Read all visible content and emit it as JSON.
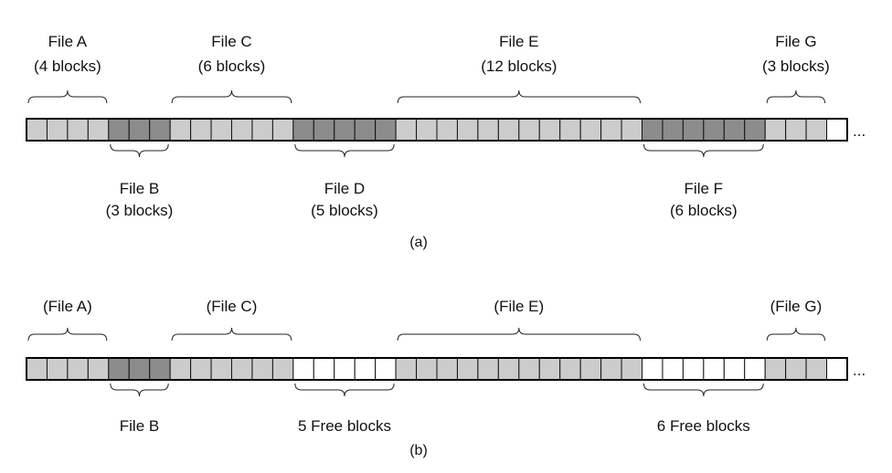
{
  "colors": {
    "light": "#cccccc",
    "dark": "#8c8c8c",
    "free": "#ffffff",
    "outline": "#111111"
  },
  "ellipsis": "...",
  "panels": [
    {
      "caption": "(a)",
      "segments": [
        {
          "blocks": 4,
          "fill": "light",
          "brace": "above",
          "lines": [
            "File A",
            "(4 blocks)"
          ]
        },
        {
          "blocks": 3,
          "fill": "dark",
          "brace": "below",
          "lines": [
            "File B",
            "(3 blocks)"
          ]
        },
        {
          "blocks": 6,
          "fill": "light",
          "brace": "above",
          "lines": [
            "File C",
            "(6 blocks)"
          ]
        },
        {
          "blocks": 5,
          "fill": "dark",
          "brace": "below",
          "lines": [
            "File D",
            "(5 blocks)"
          ]
        },
        {
          "blocks": 12,
          "fill": "light",
          "brace": "above",
          "lines": [
            "File E",
            "(12 blocks)"
          ]
        },
        {
          "blocks": 6,
          "fill": "dark",
          "brace": "below",
          "lines": [
            "File F",
            "(6 blocks)"
          ]
        },
        {
          "blocks": 3,
          "fill": "light",
          "brace": "above",
          "lines": [
            "File G",
            "(3 blocks)"
          ]
        },
        {
          "blocks": 1,
          "fill": "free",
          "brace": "none",
          "lines": []
        }
      ]
    },
    {
      "caption": "(b)",
      "segments": [
        {
          "blocks": 4,
          "fill": "light",
          "brace": "above",
          "lines": [
            "(File A)"
          ]
        },
        {
          "blocks": 3,
          "fill": "dark",
          "brace": "below",
          "lines": [
            "File B"
          ]
        },
        {
          "blocks": 6,
          "fill": "light",
          "brace": "above",
          "lines": [
            "(File C)"
          ]
        },
        {
          "blocks": 5,
          "fill": "free",
          "brace": "below",
          "lines": [
            "5 Free blocks"
          ]
        },
        {
          "blocks": 12,
          "fill": "light",
          "brace": "above",
          "lines": [
            "(File E)"
          ]
        },
        {
          "blocks": 6,
          "fill": "free",
          "brace": "below",
          "lines": [
            "6 Free blocks"
          ]
        },
        {
          "blocks": 3,
          "fill": "light",
          "brace": "above",
          "lines": [
            "(File G)"
          ]
        },
        {
          "blocks": 1,
          "fill": "free",
          "brace": "none",
          "lines": []
        }
      ]
    }
  ]
}
